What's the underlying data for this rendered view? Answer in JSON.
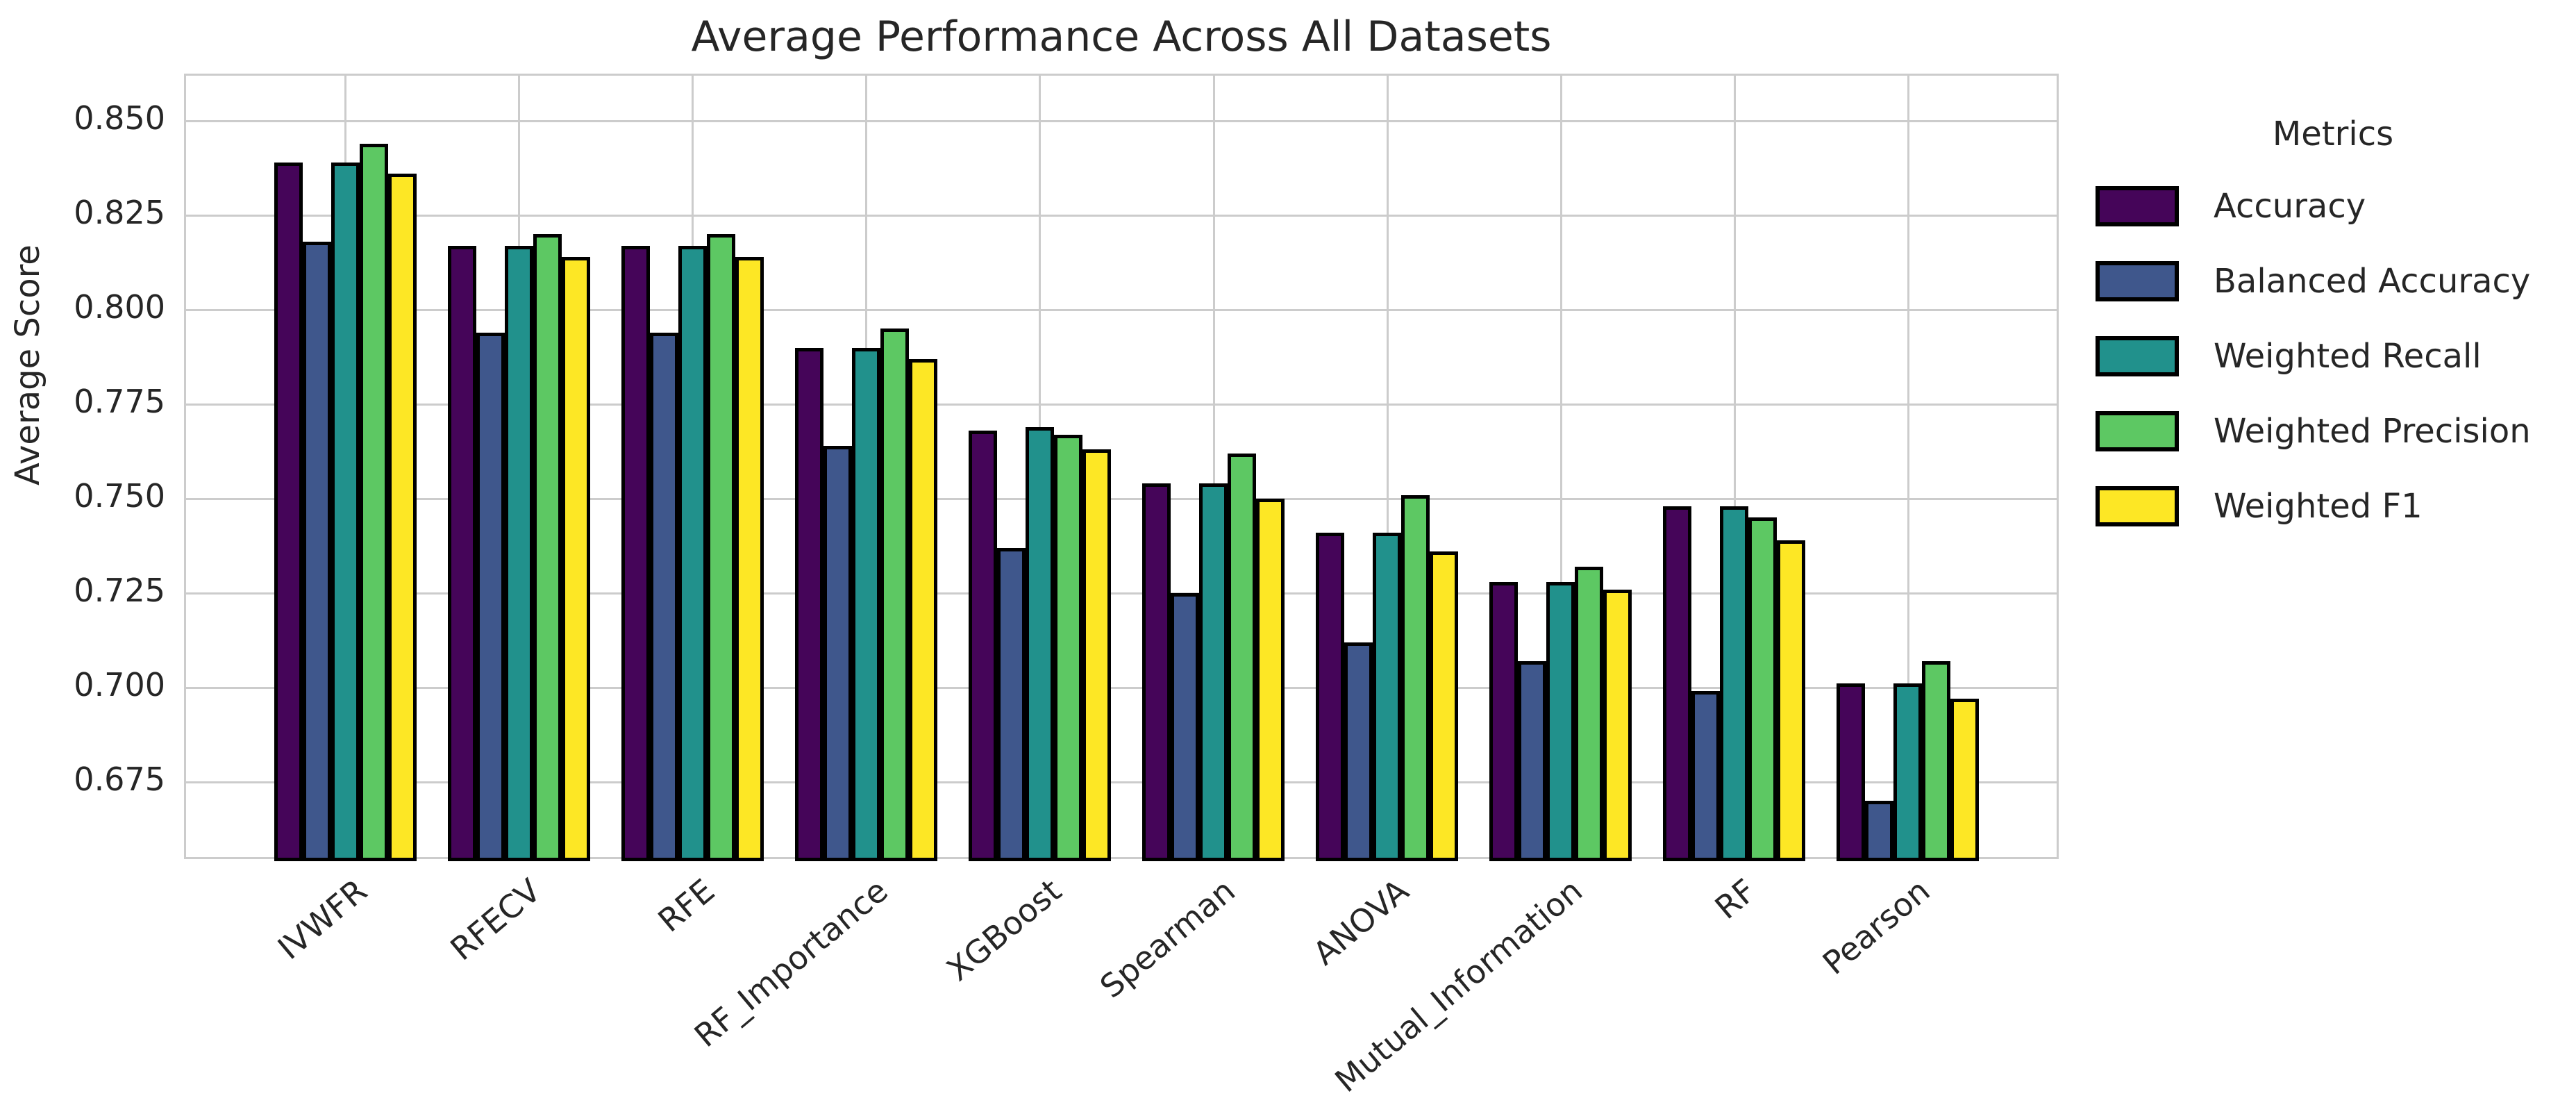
{
  "chart_data": {
    "type": "bar",
    "title": "Average Performance Across All Datasets",
    "xlabel": "",
    "ylabel": "Average Score",
    "legend_title": "Metrics",
    "legend_position": "right",
    "grid": true,
    "ylim": [
      0.654,
      0.862
    ],
    "yticks": [
      0.675,
      0.7,
      0.725,
      0.75,
      0.775,
      0.8,
      0.825,
      0.85
    ],
    "categories": [
      "IVWFR",
      "RFECV",
      "RFE",
      "RF_Importance",
      "XGBoost",
      "Spearman",
      "ANOVA",
      "Mutual_Information",
      "RF",
      "Pearson"
    ],
    "series": [
      {
        "name": "Accuracy",
        "color": "#450559",
        "values": [
          0.839,
          0.817,
          0.817,
          0.79,
          0.768,
          0.754,
          0.741,
          0.728,
          0.748,
          0.701
        ]
      },
      {
        "name": "Balanced Accuracy",
        "color": "#3f578c",
        "values": [
          0.818,
          0.794,
          0.794,
          0.764,
          0.737,
          0.725,
          0.712,
          0.707,
          0.699,
          0.67
        ]
      },
      {
        "name": "Weighted Recall",
        "color": "#21918c",
        "values": [
          0.839,
          0.817,
          0.817,
          0.79,
          0.769,
          0.754,
          0.741,
          0.728,
          0.748,
          0.701
        ]
      },
      {
        "name": "Weighted Precision",
        "color": "#5dc863",
        "values": [
          0.844,
          0.82,
          0.82,
          0.795,
          0.767,
          0.762,
          0.751,
          0.732,
          0.745,
          0.707
        ]
      },
      {
        "name": "Weighted F1",
        "color": "#fde725",
        "values": [
          0.836,
          0.814,
          0.814,
          0.787,
          0.763,
          0.75,
          0.736,
          0.726,
          0.739,
          0.697
        ]
      }
    ],
    "grid_color": "#cccccc",
    "edge_color": "#000000",
    "text_color": "#262626"
  }
}
